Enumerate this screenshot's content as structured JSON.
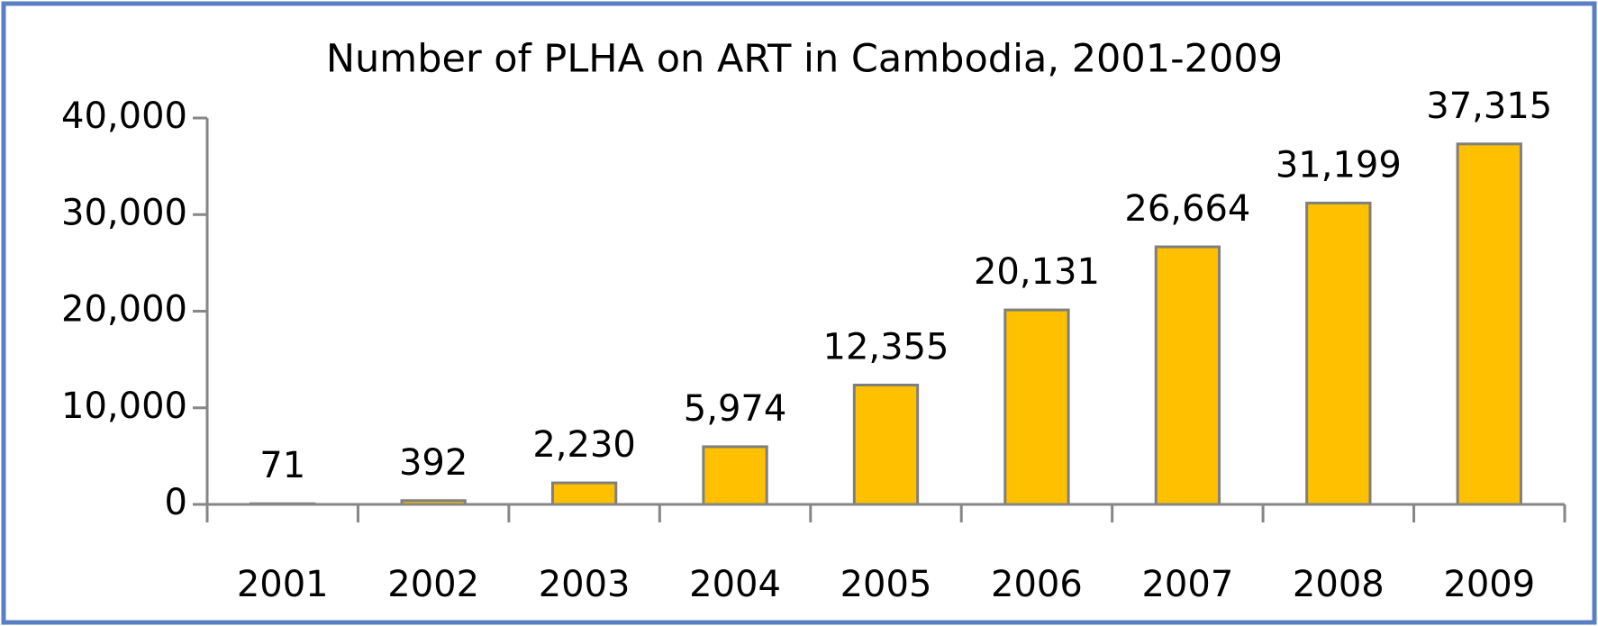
{
  "chart_data": {
    "type": "bar",
    "title": "Number of PLHA on ART in Cambodia, 2001-2009",
    "categories": [
      "2001",
      "2002",
      "2003",
      "2004",
      "2005",
      "2006",
      "2007",
      "2008",
      "2009"
    ],
    "values": [
      71,
      392,
      2230,
      5974,
      12355,
      20131,
      26664,
      31199,
      37315
    ],
    "value_labels": [
      "71",
      "392",
      "2,230",
      "5,974",
      "12,355",
      "20,131",
      "26,664",
      "31,199",
      "37,315"
    ],
    "color": "#FFC000",
    "ylim": [
      0,
      40000
    ],
    "yticks": [
      0,
      {
        "value": 10000,
        "label": "10,000"
      },
      {
        "value": 20000,
        "label": "20,000"
      },
      {
        "value": 30000,
        "label": "30,000"
      },
      {
        "value": 40000,
        "label": "40,000"
      }
    ],
    "grid": false
  }
}
